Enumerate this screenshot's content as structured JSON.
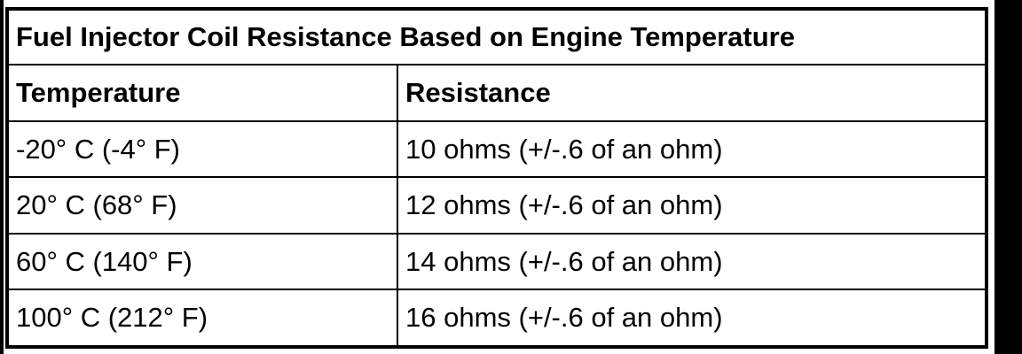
{
  "table": {
    "title": "Fuel Injector Coil Resistance Based on Engine Temperature",
    "header": [
      "Temperature",
      "Resistance"
    ],
    "rows": [
      [
        "-20° C (-4° F)",
        "10 ohms (+/-.6 of an ohm)"
      ],
      [
        "20° C (68° F)",
        "12 ohms (+/-.6 of an ohm)"
      ],
      [
        "60° C (140° F)",
        "14 ohms (+/-.6 of an ohm)"
      ],
      [
        "100° C (212° F)",
        "16 ohms (+/-.6 of an ohm)"
      ]
    ]
  }
}
